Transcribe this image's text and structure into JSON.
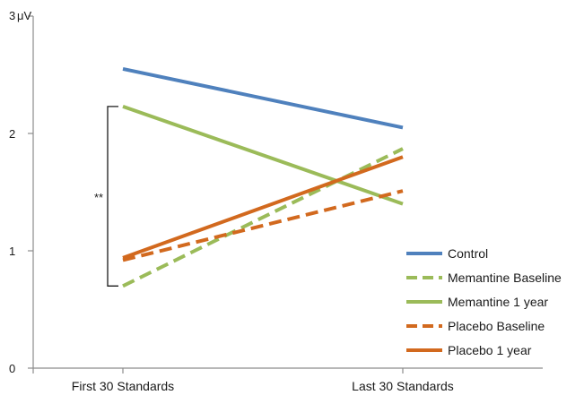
{
  "chart_data": {
    "type": "line",
    "categories": [
      "First 30 Standards",
      "Last 30 Standards"
    ],
    "ylim": [
      0,
      3
    ],
    "yticks": [
      "0",
      "1",
      "2",
      "3"
    ],
    "yunit": "μV",
    "grid": false,
    "legend_position": "bottom-right",
    "series": [
      {
        "name": "Control",
        "values": [
          2.55,
          2.05
        ],
        "color": "#4f81bd",
        "style": "solid"
      },
      {
        "name": "Memantine Baseline",
        "values": [
          0.7,
          1.87
        ],
        "color": "#9bbb59",
        "style": "dashed"
      },
      {
        "name": "Memantine 1 year",
        "values": [
          2.23,
          1.4
        ],
        "color": "#9bbb59",
        "style": "solid"
      },
      {
        "name": "Placebo Baseline",
        "values": [
          0.92,
          1.51
        ],
        "color": "#d2691e",
        "style": "dashed"
      },
      {
        "name": "Placebo 1 year",
        "values": [
          0.94,
          1.8
        ],
        "color": "#d2691e",
        "style": "solid"
      }
    ],
    "annotation": {
      "label": "**",
      "from": 0.7,
      "to": 2.23,
      "category": "First 30 Standards"
    }
  }
}
